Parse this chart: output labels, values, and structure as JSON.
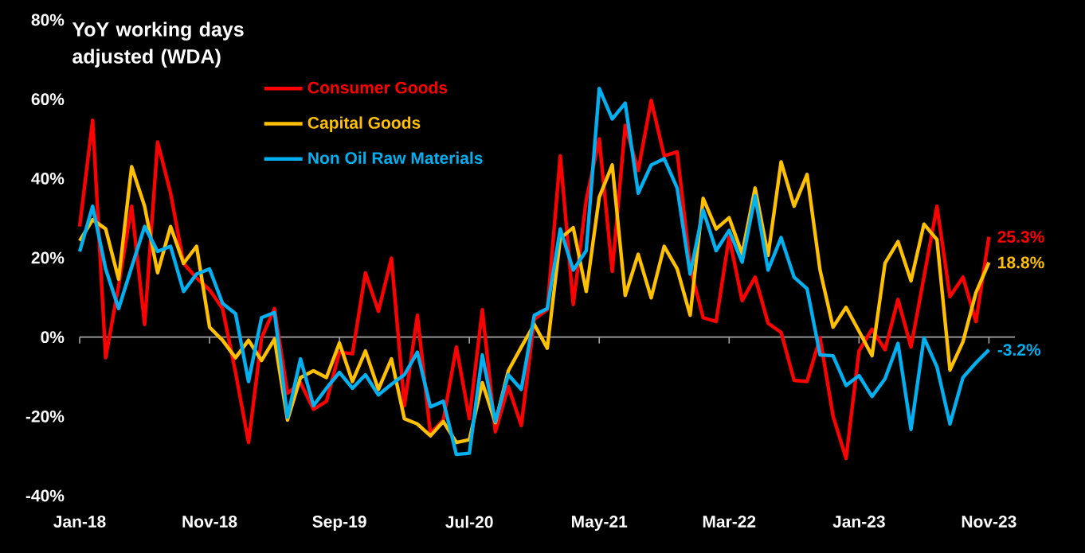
{
  "chart_data": {
    "type": "line",
    "title": "YoY working days adjusted (WDA)",
    "x": [
      "2018-01",
      "2018-02",
      "2018-03",
      "2018-04",
      "2018-05",
      "2018-06",
      "2018-07",
      "2018-08",
      "2018-09",
      "2018-10",
      "2018-11",
      "2018-12",
      "2019-01",
      "2019-02",
      "2019-03",
      "2019-04",
      "2019-05",
      "2019-06",
      "2019-07",
      "2019-08",
      "2019-09",
      "2019-10",
      "2019-11",
      "2019-12",
      "2020-01",
      "2020-02",
      "2020-03",
      "2020-04",
      "2020-05",
      "2020-06",
      "2020-07",
      "2020-08",
      "2020-09",
      "2020-10",
      "2020-11",
      "2020-12",
      "2021-01",
      "2021-02",
      "2021-03",
      "2021-04",
      "2021-05",
      "2021-06",
      "2021-07",
      "2021-08",
      "2021-09",
      "2021-10",
      "2021-11",
      "2021-12",
      "2022-01",
      "2022-02",
      "2022-03",
      "2022-04",
      "2022-05",
      "2022-06",
      "2022-07",
      "2022-08",
      "2022-09",
      "2022-10",
      "2022-11",
      "2022-12",
      "2023-01",
      "2023-02",
      "2023-03",
      "2023-04",
      "2023-05",
      "2023-06",
      "2023-07",
      "2023-08",
      "2023-09",
      "2023-10",
      "2023-11"
    ],
    "series": [
      {
        "name": "Consumer Goods",
        "color": "#ff0000",
        "values": [
          27.9,
          54.7,
          -5.2,
          13,
          33,
          3.2,
          49.2,
          36.3,
          18.6,
          14.9,
          11.9,
          7.2,
          -8.9,
          -26.6,
          -0.2,
          7.2,
          -14.2,
          -11.5,
          -18.2,
          -16.2,
          -3.8,
          -4.2,
          16.2,
          6.5,
          19.9,
          -17.3,
          5.5,
          -24.3,
          -20.9,
          -2.5,
          -20.6,
          6.9,
          -23.9,
          -12.5,
          -22.3,
          4.5,
          6.9,
          45.7,
          8.2,
          34.6,
          50,
          16.6,
          53.4,
          42,
          59.7,
          45.7,
          46.7,
          17.6,
          4.9,
          3.9,
          25.3,
          9.2,
          15.1,
          3.5,
          1.2,
          -10.9,
          -11.2,
          -0.2,
          -19.9,
          -30.6,
          -3.5,
          2,
          -3.2,
          9.5,
          -2.5,
          15.2,
          33,
          10.2,
          15.1,
          3.9,
          25.3
        ],
        "value_labels": [
          null,
          null,
          null,
          null,
          null,
          null,
          null,
          null,
          null,
          null,
          null,
          null,
          null,
          null,
          null,
          null,
          null,
          null,
          null,
          null,
          null,
          null,
          null,
          null,
          null,
          null,
          null,
          null,
          null,
          null,
          null,
          null,
          null,
          null,
          null,
          null,
          null,
          null,
          null,
          null,
          null,
          null,
          null,
          null,
          null,
          null,
          null,
          null,
          null,
          null,
          null,
          null,
          null,
          null,
          null,
          null,
          null,
          null,
          null,
          null,
          null,
          null,
          null,
          null,
          null,
          null,
          null,
          null,
          null,
          null,
          "25.3%"
        ]
      },
      {
        "name": "Capital Goods",
        "color": "#ffc000",
        "values": [
          24.3,
          29.6,
          27.3,
          14.6,
          43,
          33,
          16.2,
          27.9,
          18.6,
          22.9,
          2.5,
          -0.8,
          -5.2,
          -0.8,
          -5.9,
          -0.5,
          -20.9,
          -10.2,
          -8.5,
          -10.2,
          -1.5,
          -11.2,
          -3.5,
          -13.2,
          -5.5,
          -20.6,
          -21.9,
          -24.9,
          -21.3,
          -26.6,
          -25.9,
          -11.5,
          -21.6,
          -8.5,
          -2.5,
          3.2,
          -2.8,
          24.9,
          27.6,
          11.5,
          35.3,
          43.4,
          10.5,
          20.9,
          9.9,
          22.9,
          17.2,
          5.5,
          35,
          27.3,
          30.1,
          21,
          37.6,
          20.6,
          44.2,
          33,
          41,
          16.9,
          2.5,
          7.5,
          1.5,
          -4.7,
          18.6,
          24.1,
          14.2,
          28.5,
          24.6,
          -8.3,
          -1.2,
          11.2,
          18.8
        ],
        "value_labels": [
          null,
          null,
          null,
          null,
          null,
          null,
          null,
          null,
          null,
          null,
          null,
          null,
          null,
          null,
          null,
          null,
          null,
          null,
          null,
          null,
          null,
          null,
          null,
          null,
          null,
          null,
          null,
          null,
          null,
          null,
          null,
          null,
          null,
          null,
          null,
          null,
          null,
          null,
          null,
          null,
          null,
          null,
          null,
          null,
          null,
          null,
          null,
          null,
          null,
          null,
          null,
          null,
          null,
          null,
          null,
          null,
          null,
          null,
          null,
          null,
          null,
          null,
          null,
          null,
          null,
          null,
          null,
          null,
          null,
          null,
          "18.8%"
        ]
      },
      {
        "name": "Non Oil Raw Materials",
        "color": "#00b0f0",
        "values": [
          21.6,
          33,
          17.2,
          7.2,
          17.6,
          27.9,
          21.6,
          22.9,
          11.5,
          15.9,
          17.2,
          8.5,
          5.9,
          -11.2,
          4.9,
          6.2,
          -20.2,
          -5.5,
          -17.3,
          -12.9,
          -8.9,
          -12.9,
          -9.5,
          -14.6,
          -11.9,
          -9.5,
          -3.8,
          -17.6,
          -16.2,
          -29.6,
          -29.3,
          -4.5,
          -21.3,
          -9.5,
          -13.2,
          5.5,
          7.2,
          27.3,
          16.9,
          21.8,
          62.7,
          55,
          59,
          36.3,
          43.4,
          45,
          37.6,
          15.9,
          32,
          21.8,
          26.9,
          18.9,
          35.6,
          16.9,
          25.1,
          15.1,
          12.2,
          -4.5,
          -4.7,
          -12.2,
          -9.7,
          -15,
          -10.5,
          -1.6,
          -23.3,
          -0.2,
          -7.5,
          -21.9,
          -10.2,
          -6.5,
          -3.2
        ],
        "value_labels": [
          null,
          null,
          null,
          null,
          null,
          null,
          null,
          null,
          null,
          null,
          null,
          null,
          null,
          null,
          null,
          null,
          null,
          null,
          null,
          null,
          null,
          null,
          null,
          null,
          null,
          null,
          null,
          null,
          null,
          null,
          null,
          null,
          null,
          null,
          null,
          null,
          null,
          null,
          null,
          null,
          null,
          null,
          null,
          null,
          null,
          null,
          null,
          null,
          null,
          null,
          null,
          null,
          null,
          null,
          null,
          null,
          null,
          null,
          null,
          null,
          null,
          null,
          null,
          null,
          null,
          null,
          null,
          null,
          null,
          null,
          "-3.2%"
        ]
      }
    ],
    "xlim": [
      "2018-01",
      "2024-01"
    ],
    "xticks": [
      {
        "value": "2018-01",
        "label": "Jan-18"
      },
      {
        "value": "2018-11",
        "label": "Nov-18"
      },
      {
        "value": "2019-09",
        "label": "Sep-19"
      },
      {
        "value": "2020-07",
        "label": "Jul-20"
      },
      {
        "value": "2021-05",
        "label": "May-21"
      },
      {
        "value": "2022-03",
        "label": "Mar-22"
      },
      {
        "value": "2023-01",
        "label": "Jan-23"
      },
      {
        "value": "2023-11",
        "label": "Nov-23"
      }
    ],
    "ylim": [
      -40,
      80
    ],
    "yticks": [
      {
        "value": -40,
        "label": "-40%"
      },
      {
        "value": -20,
        "label": "-20%"
      },
      {
        "value": 0,
        "label": "0%"
      },
      {
        "value": 20,
        "label": "20%"
      },
      {
        "value": 40,
        "label": "40%"
      },
      {
        "value": 60,
        "label": "60%"
      },
      {
        "value": 80,
        "label": "80%"
      }
    ],
    "legend": "top left"
  }
}
